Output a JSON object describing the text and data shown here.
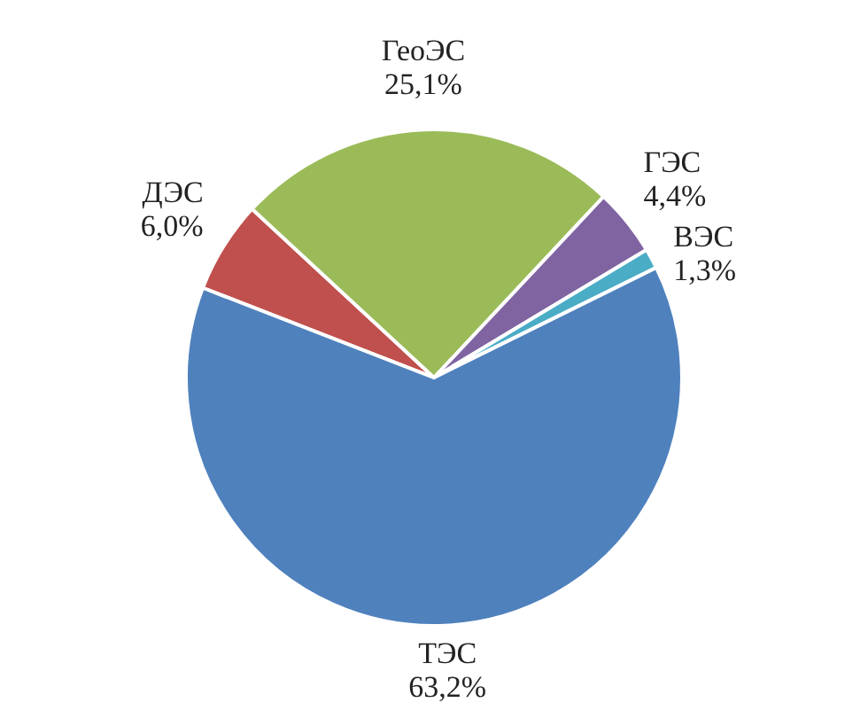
{
  "chart_data": {
    "type": "pie",
    "categories": [
      "ДЭС",
      "ГеоЭС",
      "ГЭС",
      "ВЭС",
      "ТЭС"
    ],
    "values": [
      6.0,
      25.1,
      4.4,
      1.3,
      63.2
    ],
    "value_labels": [
      "6,0%",
      "25,1%",
      "4,4%",
      "1,3%",
      "63,2%"
    ],
    "colors": [
      "#c0504d",
      "#9bbb59",
      "#8064a2",
      "#4bacc6",
      "#4f81bd"
    ],
    "legend": false
  }
}
